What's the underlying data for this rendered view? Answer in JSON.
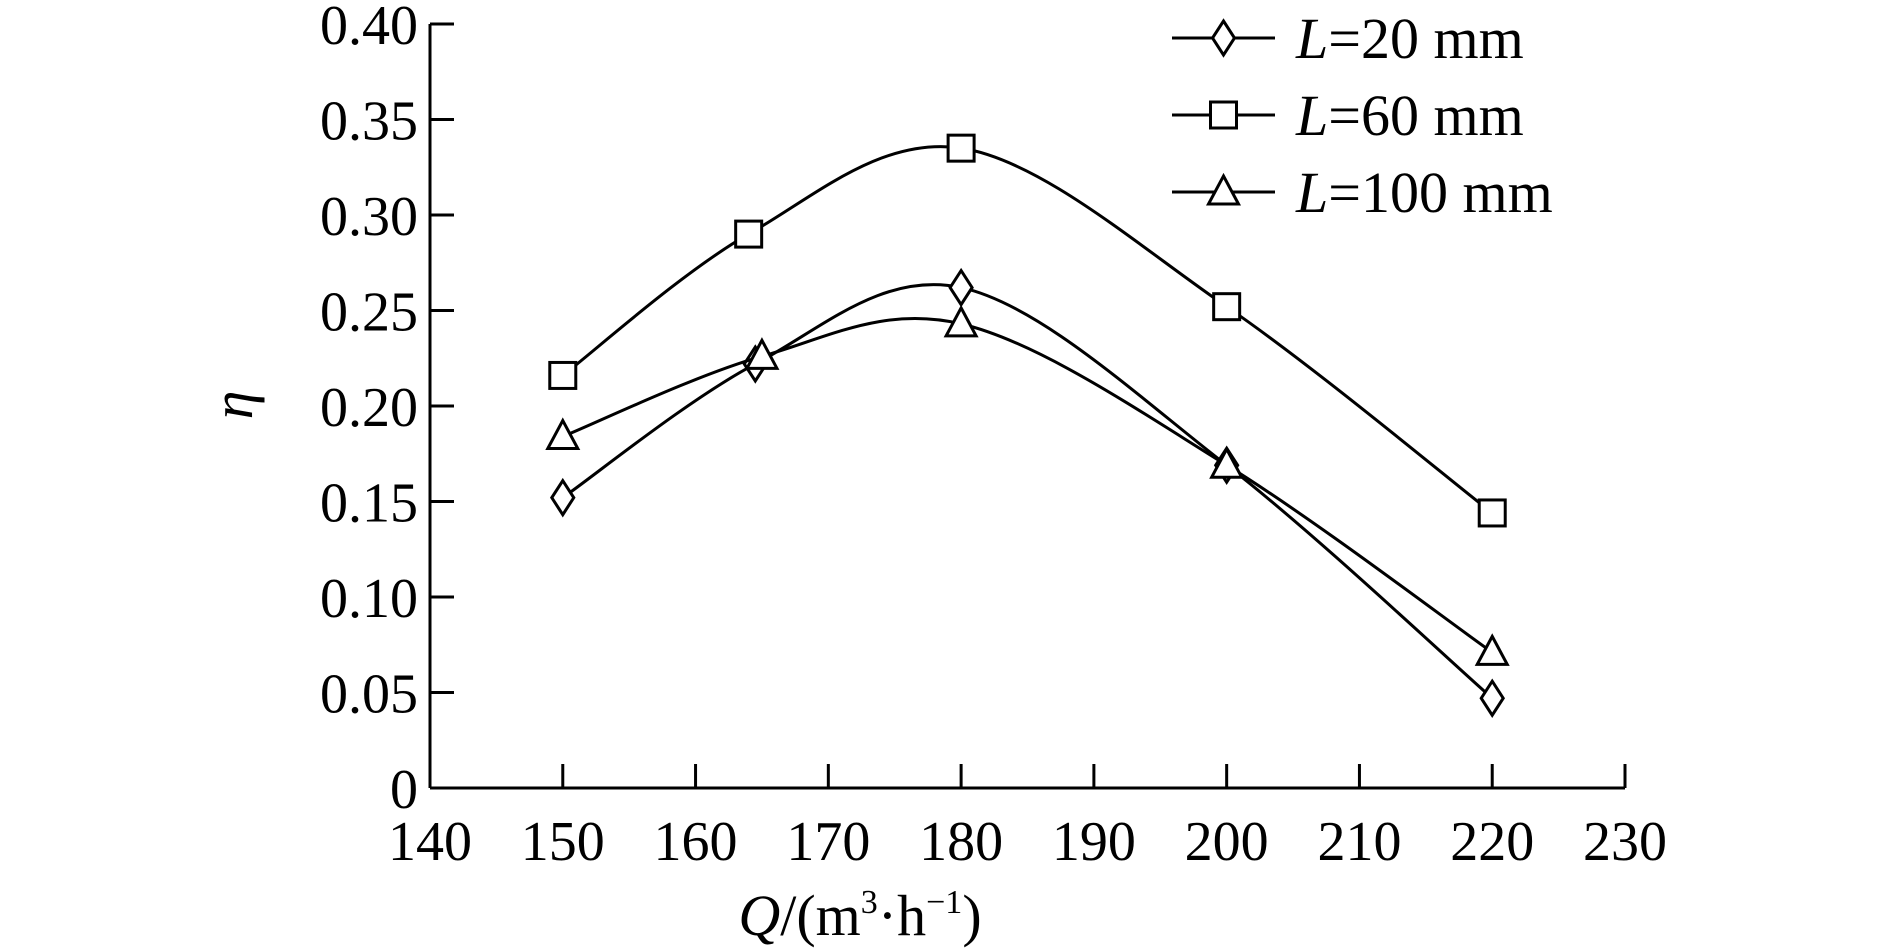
{
  "chart_data": {
    "type": "line",
    "xlabel": {
      "var": "Q",
      "unit_open": "/(m",
      "sup1": "3",
      "mid": "·h",
      "sup2": "−1",
      "unit_close": ")"
    },
    "ylabel": "η",
    "xlim": [
      140,
      230
    ],
    "ylim": [
      0,
      0.4
    ],
    "xticks": [
      "140",
      "150",
      "160",
      "170",
      "180",
      "190",
      "200",
      "210",
      "220",
      "230"
    ],
    "yticks": [
      "0",
      "0.05",
      "0.10",
      "0.15",
      "0.20",
      "0.25",
      "0.30",
      "0.35",
      "0.40"
    ],
    "x": [
      150,
      165,
      180,
      200,
      220
    ],
    "grid": false,
    "legend_position": "top-right",
    "series": [
      {
        "var": "L",
        "rest": "=20 mm",
        "marker": "diamond",
        "x": [
          150,
          164.5,
          180,
          200,
          220
        ],
        "values": [
          0.152,
          0.222,
          0.262,
          0.169,
          0.047
        ]
      },
      {
        "var": "L",
        "rest": "=60 mm",
        "marker": "square",
        "x": [
          150,
          164,
          180,
          200,
          220
        ],
        "values": [
          0.216,
          0.29,
          0.335,
          0.252,
          0.144
        ]
      },
      {
        "var": "L",
        "rest": "=100 mm",
        "marker": "triangle",
        "x": [
          150,
          165,
          180,
          200,
          220
        ],
        "values": [
          0.184,
          0.226,
          0.243,
          0.169,
          0.071
        ]
      }
    ]
  }
}
